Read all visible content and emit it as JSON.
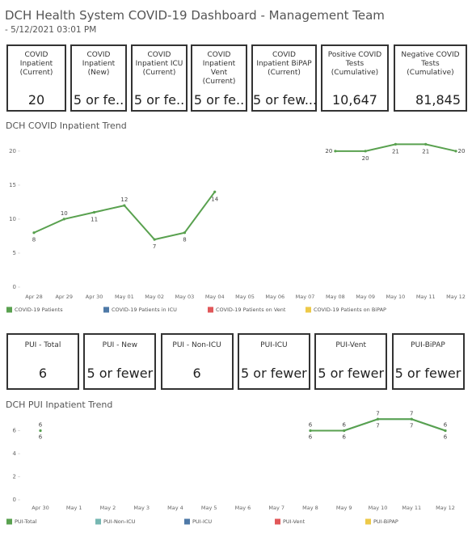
{
  "header": {
    "title": "DCH Health System COVID-19 Dashboard - Management Team",
    "subtitle": "- 5/12/2021 03:01 PM"
  },
  "kpi_cards": [
    {
      "label": "COVID Inpatient (Current)",
      "value": 20
    },
    {
      "label": "COVID Inpatient (New)",
      "value": "5 or fe.."
    },
    {
      "label": "COVID Inpatient ICU (Current)",
      "value": "5 or fe.."
    },
    {
      "label": "COVID Inpatient Vent (Current)",
      "value": "5 or fe.."
    },
    {
      "label": "COVID Inpatient BiPAP (Current)",
      "value": "5 or few..."
    },
    {
      "label": "Positive COVID Tests (Cumulative)",
      "value": "10,647"
    },
    {
      "label": "Negative COVID Tests (Cumulative)",
      "value": "81,845"
    }
  ],
  "pui_cards": [
    {
      "label": "PUI - Total",
      "value": 6
    },
    {
      "label": "PUI - New",
      "value": "5 or fewer"
    },
    {
      "label": "PUI - Non-ICU",
      "value": 6
    },
    {
      "label": "PUI-ICU",
      "value": "5 or fewer"
    },
    {
      "label": "PUI-Vent",
      "value": "5 or fewer"
    },
    {
      "label": "PUI-BiPAP",
      "value": "5 or fewer"
    }
  ],
  "chart_data": [
    {
      "type": "line",
      "title": "DCH COVID Inpatient Trend",
      "categories": [
        "Apr 28",
        "Apr 29",
        "Apr 30",
        "May 01",
        "May 02",
        "May 03",
        "May 04",
        "May 05",
        "May 06",
        "May 07",
        "May 08",
        "May 09",
        "May 10",
        "May 11",
        "May 12"
      ],
      "series": [
        {
          "name": "COVID-19 Patients",
          "color": "#59a14f",
          "values": [
            8,
            10,
            11,
            12,
            7,
            8,
            14,
            null,
            null,
            null,
            20,
            20,
            21,
            21,
            20
          ]
        },
        {
          "name": "COVID-19 Patients in ICU",
          "color": "#4e79a7",
          "values": [
            null,
            null,
            null,
            null,
            null,
            null,
            null,
            null,
            null,
            null,
            null,
            null,
            null,
            null,
            null
          ]
        },
        {
          "name": "COVID-19 Patients on Vent",
          "color": "#e15759",
          "values": [
            null,
            null,
            null,
            null,
            null,
            null,
            null,
            null,
            null,
            null,
            null,
            null,
            null,
            null,
            null
          ]
        },
        {
          "name": "COVID-19 Patients on BiPAP",
          "color": "#edc948",
          "values": [
            null,
            null,
            null,
            null,
            null,
            null,
            null,
            null,
            null,
            null,
            null,
            null,
            null,
            null,
            null
          ]
        }
      ],
      "ylim": [
        0,
        22
      ],
      "yticks": [
        0,
        5,
        10,
        15,
        20
      ],
      "grid": false,
      "legend": "bottom"
    },
    {
      "type": "line",
      "title": "DCH PUI Inpatient Trend",
      "categories": [
        "Apr 30",
        "May 1",
        "May 2",
        "May 3",
        "May 4",
        "May 5",
        "May 6",
        "May 7",
        "May 8",
        "May 9",
        "May 10",
        "May 11",
        "May 12"
      ],
      "series": [
        {
          "name": "PUI-Total",
          "color": "#59a14f",
          "values": [
            6,
            null,
            null,
            null,
            null,
            null,
            null,
            null,
            6,
            6,
            7,
            7,
            6
          ]
        },
        {
          "name": "PUI-Non-ICU",
          "color": "#76b7b2",
          "values": [
            6,
            null,
            null,
            null,
            null,
            null,
            null,
            null,
            6,
            6,
            7,
            7,
            6
          ]
        },
        {
          "name": "PUI-ICU",
          "color": "#4e79a7",
          "values": [
            null,
            null,
            null,
            null,
            null,
            null,
            null,
            null,
            null,
            null,
            null,
            null,
            null
          ]
        },
        {
          "name": "PUI-Vent",
          "color": "#e15759",
          "values": [
            null,
            null,
            null,
            null,
            null,
            null,
            null,
            null,
            null,
            null,
            null,
            null,
            null
          ]
        },
        {
          "name": "PUI-BiPAP",
          "color": "#edc948",
          "values": [
            null,
            null,
            null,
            null,
            null,
            null,
            null,
            null,
            null,
            null,
            null,
            null,
            null
          ]
        }
      ],
      "ylim": [
        0,
        8
      ],
      "yticks": [
        0,
        2,
        4,
        6
      ],
      "grid": false,
      "legend": "bottom"
    }
  ]
}
